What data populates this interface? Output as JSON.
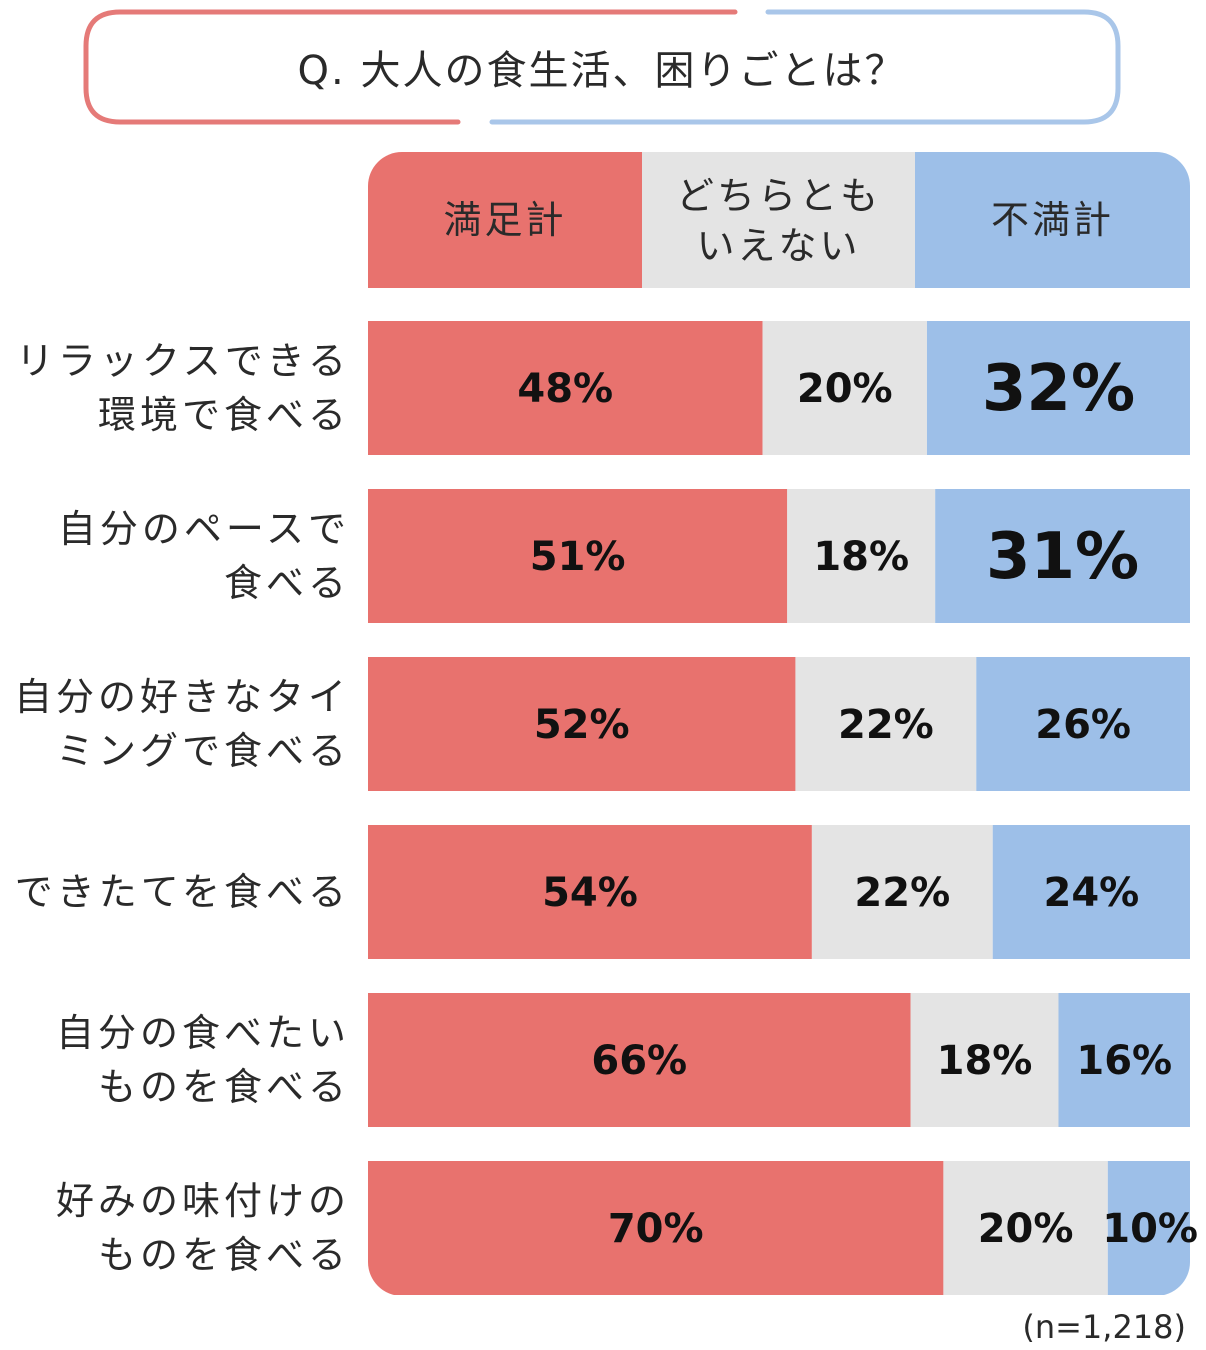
{
  "chart_data": {
    "type": "bar",
    "orientation": "horizontal",
    "stacked": true,
    "title": "Q. 大人の食生活、困りごとは？",
    "note": "(n=1,218)",
    "colors": {
      "satisfied": "#e8726e",
      "neutral": "#e4e4e4",
      "dissatisfied": "#9dbfe8",
      "title_red": "#e57a78",
      "title_blue": "#a9c6e9"
    },
    "categories": [
      "リラックスできる\n環境で食べる",
      "自分のペースで\n食べる",
      "自分の好きなタイ\nミングで食べる",
      "できたてを食べる",
      "自分の食べたい\nものを食べる",
      "好みの味付けの\nものを食べる"
    ],
    "series": [
      {
        "name": "満足計",
        "values": [
          48,
          51,
          52,
          54,
          66,
          70
        ]
      },
      {
        "name": "どちらとも\nいえない",
        "values": [
          20,
          18,
          22,
          22,
          18,
          20
        ]
      },
      {
        "name": "不満計",
        "values": [
          32,
          31,
          26,
          24,
          16,
          10
        ]
      }
    ],
    "value_suffix": "%",
    "highlight": {
      "series": 2,
      "indices": [
        0,
        1
      ]
    },
    "xlim": [
      0,
      100
    ],
    "legend": "top"
  }
}
